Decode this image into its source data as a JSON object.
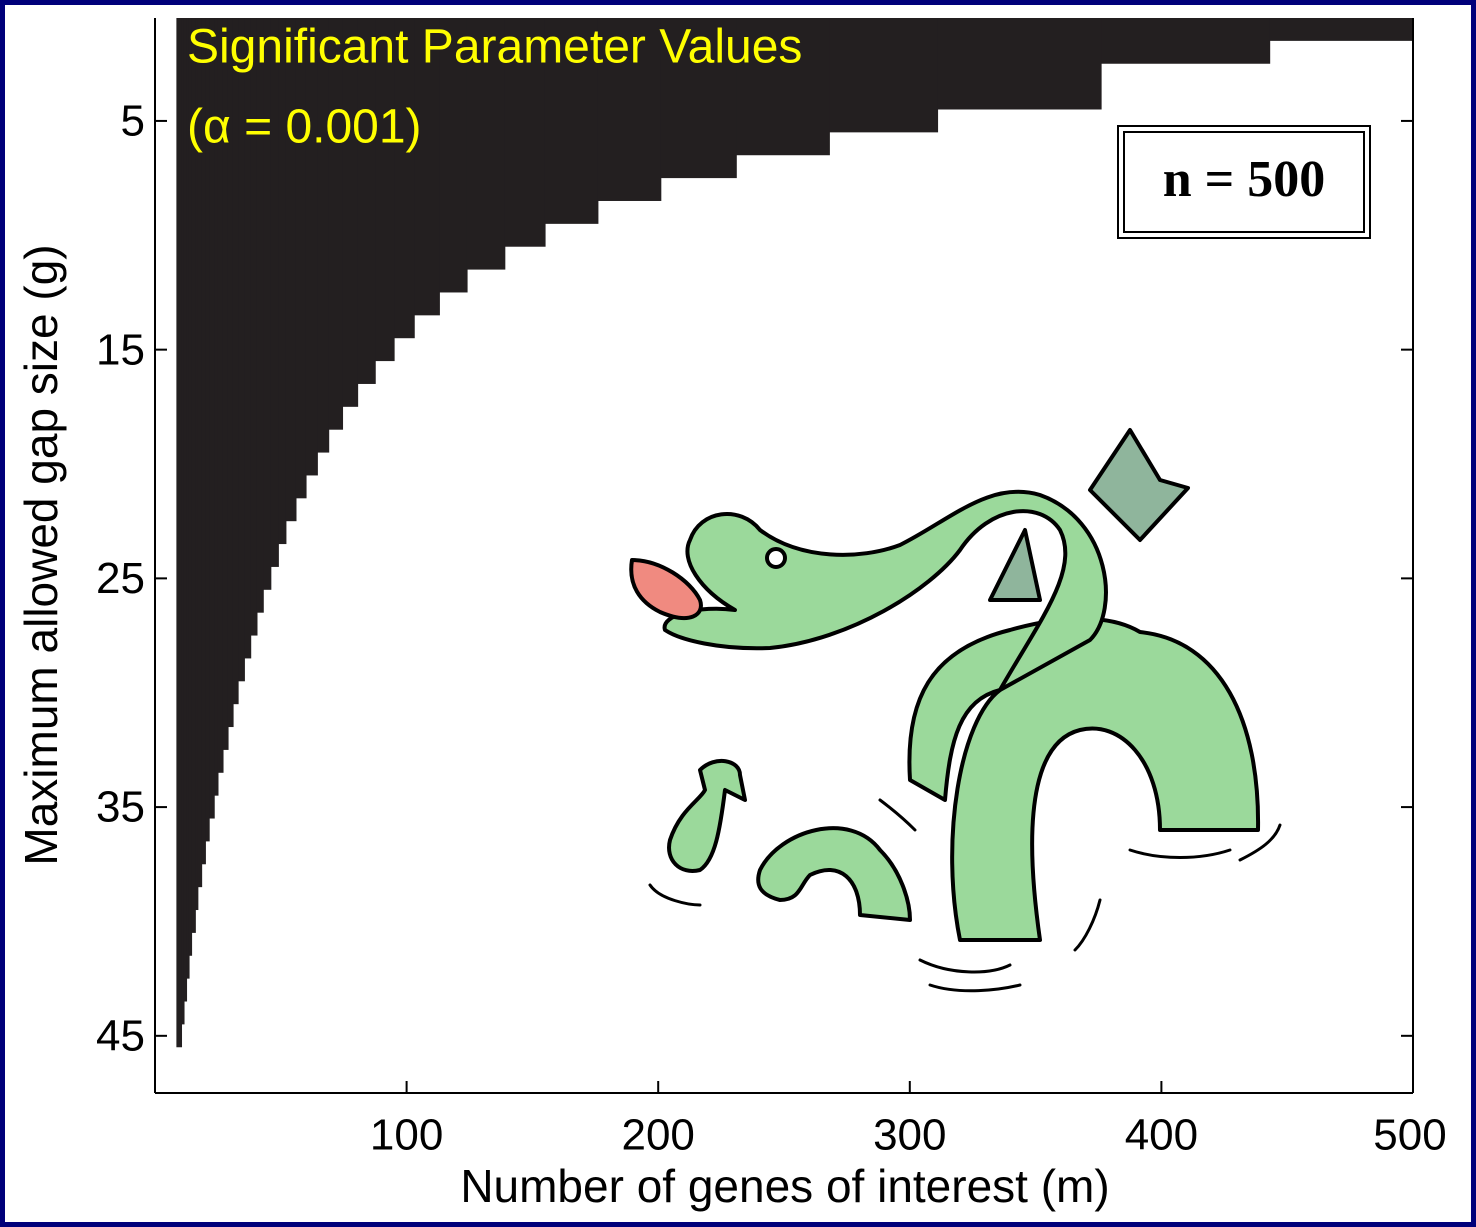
{
  "chart_data": {
    "type": "step-area",
    "title": "Significant Parameter Values",
    "subtitle": "(α = 0.001)",
    "annotation": "n = 500",
    "x_label": "Number of genes of interest (m)",
    "y_label": "Maximum allowed gap size (g)",
    "x": [
      8.5,
      10.5,
      11.5,
      12.5,
      13.5,
      14.5,
      16,
      17,
      18.5,
      20,
      21.5,
      23.5,
      25,
      27,
      29,
      31,
      33,
      35.5,
      38,
      40.5,
      43,
      46,
      49,
      52,
      56,
      60,
      64.5,
      69,
      74.5,
      80.5,
      87.5,
      95,
      103,
      113,
      124,
      139,
      155,
      176,
      201,
      231,
      268,
      311,
      376,
      443
    ],
    "values": [
      45.5,
      44.5,
      43.5,
      42.5,
      41.5,
      40.5,
      39.5,
      38.5,
      37.5,
      36.5,
      35.5,
      34.5,
      33.5,
      32.5,
      31.5,
      30.5,
      29.5,
      28.5,
      27.5,
      26.5,
      25.5,
      24.5,
      23.5,
      22.5,
      21.5,
      20.5,
      19.5,
      18.5,
      17.5,
      16.5,
      15.5,
      14.5,
      13.5,
      12.5,
      11.5,
      10.5,
      9.5,
      8.5,
      7.5,
      6.5,
      5.5,
      4.5,
      2.5,
      1.5
    ],
    "color": "#231f20",
    "xlim": [
      0,
      500
    ],
    "ylim": [
      0.5,
      47.5
    ],
    "y_inverted": true,
    "xticks": [
      100,
      200,
      300,
      400,
      500
    ],
    "yticks": [
      5,
      15,
      25,
      35,
      45
    ],
    "grid": false
  }
}
